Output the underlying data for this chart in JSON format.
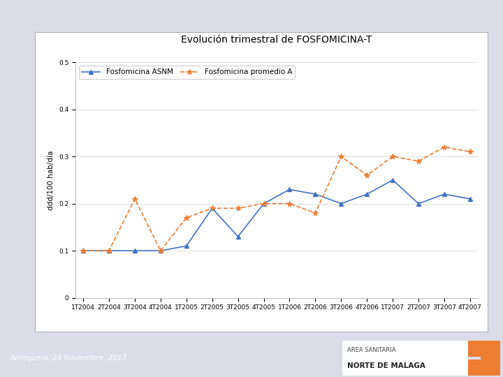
{
  "title": "Evolución trimestral de FOSFOMICINA-T",
  "ylabel": "ddd/100 hab/día",
  "ylim": [
    0,
    0.5
  ],
  "yticks": [
    0,
    0.1,
    0.2,
    0.3,
    0.4,
    0.5
  ],
  "categories": [
    "1T2004",
    "2T2004",
    "3T2004",
    "4T2004",
    "1T2005",
    "2T2005",
    "3T2005",
    "4T2005",
    "1T2006",
    "2T2006",
    "3T2006",
    "4T2006",
    "1T2007",
    "2T2007",
    "3T2007",
    "4T2007"
  ],
  "asnm": [
    0.1,
    0.1,
    0.1,
    0.1,
    0.11,
    0.19,
    0.13,
    0.2,
    0.23,
    0.22,
    0.2,
    0.22,
    0.25,
    0.2,
    0.22,
    0.21
  ],
  "promedio": [
    0.1,
    0.1,
    0.21,
    0.1,
    0.17,
    0.19,
    0.19,
    0.2,
    0.2,
    0.18,
    0.3,
    0.26,
    0.3,
    0.29,
    0.32,
    0.31
  ],
  "asnm_color": "#4472c4",
  "promedio_color": "#ed7d31",
  "asnm_label": "Fosfomicina ASNM",
  "promedio_label": "Fosfomicina promedio A",
  "chart_bg": "#ffffff",
  "outer_bg": "#dcdce8",
  "footer_bg": "#9090aa",
  "title_fontsize": 10,
  "legend_fontsize": 7.5,
  "tick_fontsize": 6.5,
  "ylabel_fontsize": 7.5,
  "footer_text": "Antequera, 24 Noviembre  2017",
  "header_color": "#8899bb",
  "border_color": "#b0b0b0",
  "orange_bracket": "#ed7d31",
  "area_sanitaria_line1": "AREA SANITARIA",
  "area_sanitaria_line2": "NORTE DE MALAGA"
}
